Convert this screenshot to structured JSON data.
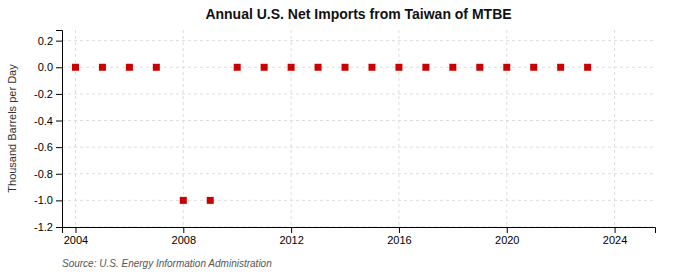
{
  "chart_data": {
    "type": "scatter",
    "title": "Annual U.S. Net Imports from Taiwan of MTBE",
    "ylabel": "Thousand Barrels per Day",
    "annotations": [
      "Source: U.S. Energy Information Administration"
    ],
    "x": [
      2004,
      2005,
      2006,
      2007,
      2008,
      2009,
      2010,
      2011,
      2012,
      2013,
      2014,
      2015,
      2016,
      2017,
      2018,
      2019,
      2020,
      2021,
      2022,
      2023
    ],
    "values": [
      0,
      0,
      0,
      0,
      -1,
      -1,
      0,
      0,
      0,
      0,
      0,
      0,
      0,
      0,
      0,
      0,
      0,
      0,
      0,
      0
    ],
    "color": "#cc0000",
    "marker": "square",
    "xlim": [
      2003.5,
      2025.5
    ],
    "ylim": [
      -1.2,
      0.28
    ],
    "xticks": [
      2004,
      2008,
      2012,
      2016,
      2020,
      2024
    ],
    "yticks": [
      -1.2,
      {
        "value": -1.0,
        "label": "-1.0"
      },
      -0.8,
      -0.6,
      -0.4,
      -0.2,
      {
        "value": 0,
        "label": "0.0"
      },
      0.2
    ],
    "grid": true
  }
}
